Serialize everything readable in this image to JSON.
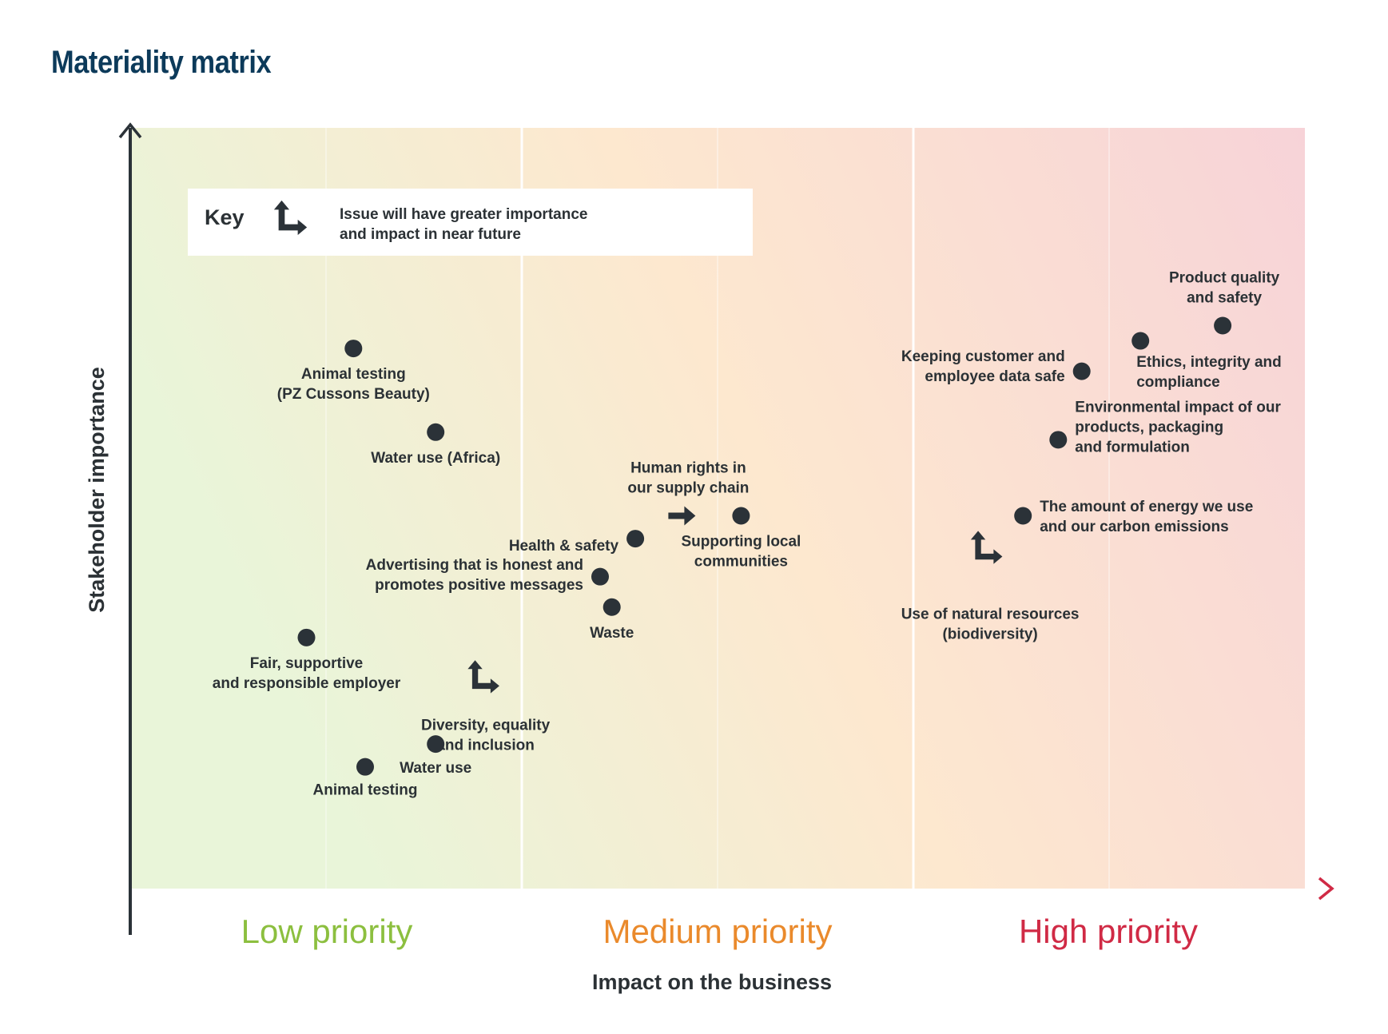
{
  "title": "Materiality matrix",
  "chart_data": {
    "type": "scatter",
    "title": "Materiality matrix",
    "xlabel": "Impact on the business",
    "ylabel": "Stakeholder importance",
    "x_bands": [
      {
        "label": "Low priority",
        "color": "#8cbf3f"
      },
      {
        "label": "Medium priority",
        "color": "#ea8a2c"
      },
      {
        "label": "High priority",
        "color": "#d02a45"
      }
    ],
    "colors": {
      "point": "#2b3238",
      "axis_y": "#2b3238",
      "axis_x_start": "#8cbf3f",
      "axis_x_mid": "#ea8a2c",
      "axis_x_end": "#d02a45",
      "bg_start": "#e9f5d9",
      "bg_mid": "#fde8cf",
      "bg_end": "#f7d3d8"
    },
    "key": {
      "title": "Key",
      "icon": "rising-importance-arrow-icon",
      "text_lines": [
        "Issue will have greater importance",
        "and impact in near future"
      ]
    },
    "points": [
      {
        "id": "animal-testing-pz",
        "x": 0.19,
        "y": 0.71,
        "label_lines": [
          "Animal testing",
          "(PZ Cussons Beauty)"
        ]
      },
      {
        "id": "water-use-africa",
        "x": 0.26,
        "y": 0.6,
        "label_lines": [
          "Water use (Africa)"
        ]
      },
      {
        "id": "health-safety",
        "x": 0.43,
        "y": 0.46,
        "label_lines": [
          "Health & safety"
        ]
      },
      {
        "id": "advertising",
        "x": 0.4,
        "y": 0.41,
        "label_lines": [
          "Advertising that is honest and",
          "promotes positive messages"
        ]
      },
      {
        "id": "waste",
        "x": 0.41,
        "y": 0.37,
        "label_lines": [
          "Waste"
        ]
      },
      {
        "id": "human-rights",
        "x": 0.52,
        "y": 0.49,
        "trend": "right",
        "label_lines": [
          "Human rights in",
          "our supply chain"
        ]
      },
      {
        "id": "supporting-communities",
        "x": 0.52,
        "y": 0.49,
        "label_lines": [
          "Supporting local",
          "communities"
        ]
      },
      {
        "id": "fair-employer",
        "x": 0.15,
        "y": 0.33,
        "label_lines": [
          "Fair, supportive",
          "and responsible employer"
        ]
      },
      {
        "id": "diversity",
        "x": 0.28,
        "y": 0.28,
        "trend": "up-right",
        "label_lines": [
          "Diversity, equality",
          "and inclusion"
        ]
      },
      {
        "id": "water-use",
        "x": 0.26,
        "y": 0.19,
        "label_lines": [
          "Water use"
        ]
      },
      {
        "id": "animal-testing",
        "x": 0.2,
        "y": 0.16,
        "label_lines": [
          "Animal testing"
        ]
      },
      {
        "id": "product-quality",
        "x": 0.93,
        "y": 0.74,
        "label_lines": [
          "Product quality",
          "and safety"
        ]
      },
      {
        "id": "ethics",
        "x": 0.86,
        "y": 0.72,
        "label_lines": [
          "Ethics, integrity and",
          "compliance"
        ]
      },
      {
        "id": "data-safe",
        "x": 0.81,
        "y": 0.68,
        "label_lines": [
          "Keeping customer and",
          "employee data safe"
        ]
      },
      {
        "id": "environmental-impact",
        "x": 0.79,
        "y": 0.59,
        "label_lines": [
          "Environmental impact of our",
          "products, packaging",
          "and formulation"
        ]
      },
      {
        "id": "energy-carbon",
        "x": 0.76,
        "y": 0.49,
        "label_lines": [
          "The amount of energy we use",
          "and our carbon emissions"
        ]
      },
      {
        "id": "natural-resources",
        "x": 0.73,
        "y": 0.45,
        "trend": "up-right",
        "label_lines": [
          "Use of natural resources",
          "(biodiversity)"
        ]
      }
    ]
  }
}
